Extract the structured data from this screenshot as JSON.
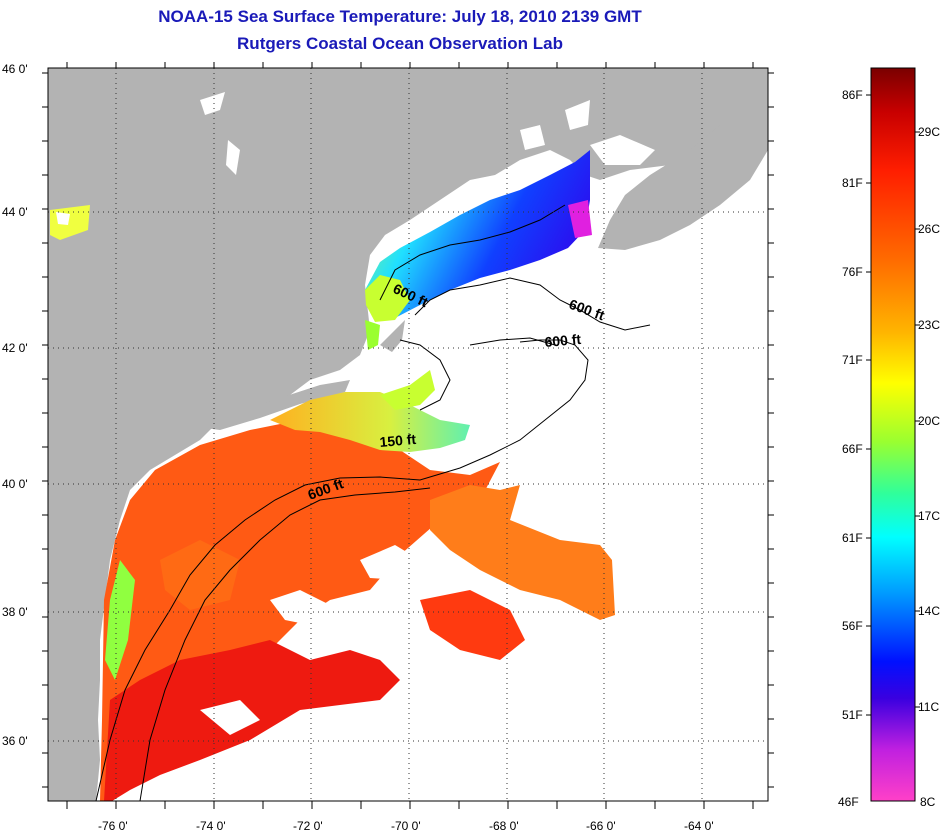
{
  "header": {
    "title": "NOAA-15 Sea Surface Temperature:  July 18, 2010 2139 GMT",
    "subtitle": "Rutgers Coastal Ocean Observation Lab"
  },
  "axes": {
    "lat_labels": [
      "46 0'",
      "44 0'",
      "42 0'",
      "40 0'",
      "38 0'",
      "36 0'"
    ],
    "lon_labels": [
      "-76 0'",
      "-74 0'",
      "-72 0'",
      "-70 0'",
      "-68 0'",
      "-66 0'",
      "-64 0'"
    ]
  },
  "contours": {
    "labels": [
      "600 ft",
      "600 ft",
      "600 ft",
      "150 ft",
      "600 ft"
    ]
  },
  "colorbar": {
    "fahrenheit": [
      "86F",
      "81F",
      "76F",
      "71F",
      "66F",
      "61F",
      "56F",
      "51F",
      "46F"
    ],
    "celsius": [
      "29C",
      "26C",
      "23C",
      "20C",
      "17C",
      "14C",
      "11C",
      "8C"
    ]
  },
  "colors": {
    "title": "#1a1ab8",
    "land": "#b3b3b3",
    "water_nodata": "#ffffff",
    "warm": "#ff5a14",
    "hot": "#ee1a10",
    "cool": "#1a50ff"
  }
}
